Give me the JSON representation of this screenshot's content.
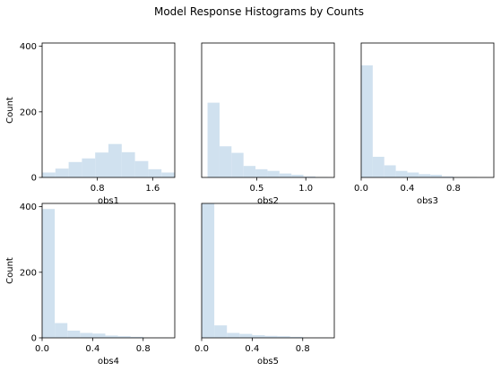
{
  "figure": {
    "title": "Model Response Histograms by Counts"
  },
  "chart_data": [
    {
      "type": "bar",
      "subplot": "obs1",
      "xlabel": "obs1",
      "ylabel": "Count",
      "bar_color": "#d0e1ef",
      "xlim": [
        0.0,
        1.92
      ],
      "ylim": [
        0,
        410
      ],
      "xticks": [
        0.8,
        1.6
      ],
      "xtick_labels": [
        "0.8",
        "1.6"
      ],
      "yticks": [
        0,
        200,
        400
      ],
      "ytick_labels": [
        "0",
        "200",
        "400"
      ],
      "bin_edges": [
        0.0,
        0.192,
        0.384,
        0.576,
        0.768,
        0.96,
        1.152,
        1.344,
        1.536,
        1.728,
        1.92
      ],
      "counts": [
        15,
        27,
        47,
        58,
        76,
        102,
        77,
        50,
        25,
        15
      ]
    },
    {
      "type": "bar",
      "subplot": "obs2",
      "xlabel": "obs2",
      "ylabel": "",
      "bar_color": "#d0e1ef",
      "xlim": [
        -0.06,
        1.29
      ],
      "ylim": [
        0,
        410
      ],
      "xticks": [
        0.5,
        1.0
      ],
      "xtick_labels": [
        "0.5",
        "1.0"
      ],
      "yticks": [],
      "ytick_labels": [],
      "bin_edges": [
        0.0,
        0.122,
        0.244,
        0.366,
        0.488,
        0.61,
        0.732,
        0.854,
        0.976,
        1.098,
        1.22
      ],
      "counts": [
        228,
        95,
        75,
        35,
        25,
        20,
        12,
        8,
        3,
        1
      ]
    },
    {
      "type": "bar",
      "subplot": "obs3",
      "xlabel": "obs3",
      "ylabel": "",
      "bar_color": "#d0e1ef",
      "xlim": [
        0.0,
        1.15
      ],
      "ylim": [
        0,
        410
      ],
      "xticks": [
        0.0,
        0.4,
        0.8
      ],
      "xtick_labels": [
        "0.0",
        "0.4",
        "0.8"
      ],
      "yticks": [],
      "ytick_labels": [],
      "bin_edges": [
        0.0,
        0.1,
        0.2,
        0.3,
        0.4,
        0.5,
        0.6,
        0.7,
        0.8,
        0.9,
        1.0
      ],
      "counts": [
        342,
        63,
        37,
        20,
        15,
        10,
        8,
        3,
        1,
        1
      ]
    },
    {
      "type": "bar",
      "subplot": "obs4",
      "xlabel": "obs4",
      "ylabel": "Count",
      "bar_color": "#d0e1ef",
      "xlim": [
        0.0,
        1.05
      ],
      "ylim": [
        0,
        410
      ],
      "xticks": [
        0.0,
        0.4,
        0.8
      ],
      "xtick_labels": [
        "0.0",
        "0.4",
        "0.8"
      ],
      "yticks": [
        0,
        200,
        400
      ],
      "ytick_labels": [
        "0",
        "200",
        "400"
      ],
      "bin_edges": [
        0.0,
        0.1,
        0.2,
        0.3,
        0.4,
        0.5,
        0.6,
        0.7,
        0.8,
        0.9,
        1.0
      ],
      "counts": [
        393,
        45,
        22,
        15,
        13,
        7,
        5,
        3,
        1,
        1
      ]
    },
    {
      "type": "bar",
      "subplot": "obs5",
      "xlabel": "obs5",
      "ylabel": "",
      "bar_color": "#d0e1ef",
      "xlim": [
        0.0,
        1.05
      ],
      "ylim": [
        0,
        410
      ],
      "xticks": [
        0.0,
        0.4,
        0.8
      ],
      "xtick_labels": [
        "0.0",
        "0.4",
        "0.8"
      ],
      "yticks": [],
      "ytick_labels": [],
      "bin_edges": [
        0.0,
        0.1,
        0.2,
        0.3,
        0.4,
        0.5,
        0.6,
        0.7,
        0.8,
        0.9,
        1.0
      ],
      "counts": [
        410,
        38,
        15,
        12,
        8,
        6,
        5,
        3,
        1,
        1
      ]
    }
  ]
}
